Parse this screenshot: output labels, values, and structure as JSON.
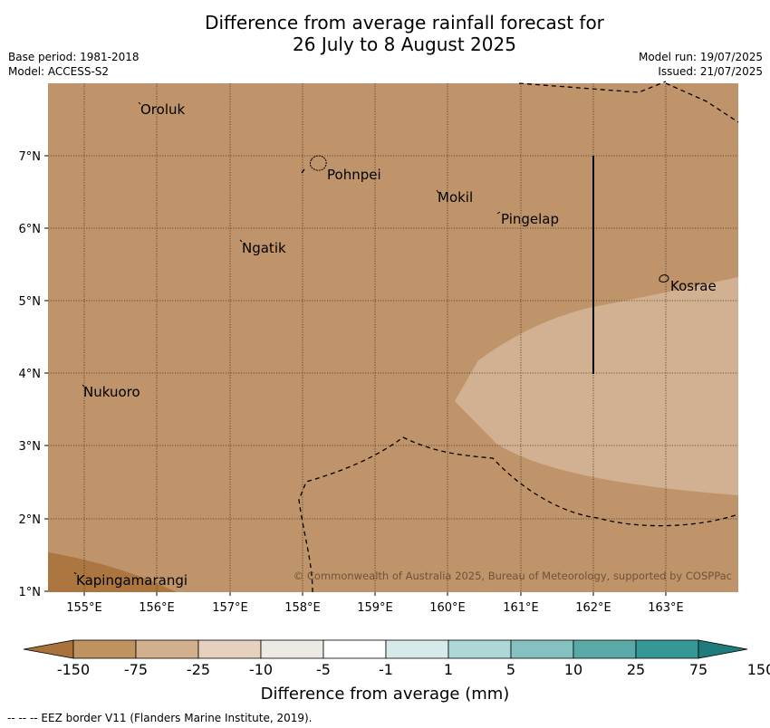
{
  "title_line1": "Difference from average rainfall forecast for",
  "title_line2": "26 July to 8 August 2025",
  "base_period": "Base period: 1981-2018",
  "model": "Model: ACCESS-S2",
  "model_run": "Model run: 19/07/2025",
  "issued": "Issued: 21/07/2025",
  "lon_ticks": [
    "155°E",
    "156°E",
    "157°E",
    "158°E",
    "159°E",
    "160°E",
    "161°E",
    "162°E",
    "163°E"
  ],
  "lat_ticks": [
    "7°N",
    "6°N",
    "5°N",
    "4°N",
    "3°N",
    "2°N",
    "1°N"
  ],
  "places": {
    "oroluk": "Oroluk",
    "pohnpei": "Pohnpei",
    "mokil": "Mokil",
    "pingelap": "Pingelap",
    "ngatik": "Ngatik",
    "kosrae": "Kosrae",
    "nukuoro": "Nukuoro",
    "kapingamarangi": "Kapingamarangi"
  },
  "copyright": "© Commonwealth of Australia 2025, Bureau of Meteorology, supported by COSPPac",
  "colorbar": {
    "labels": [
      "-150",
      "-75",
      "-25",
      "-10",
      "-5",
      "-1",
      "1",
      "5",
      "10",
      "25",
      "75",
      "150"
    ],
    "colors": [
      "#a9713c",
      "#bf935f",
      "#d2b08d",
      "#e5d1bd",
      "#ede9e4",
      "#ffffff",
      "#d6ebe9",
      "#aed7d7",
      "#84c1c0",
      "#59a9a8",
      "#369896",
      "#1f7c7a"
    ],
    "title": "Difference from average (mm)"
  },
  "footer": "--  --  -- EEZ border V11 (Flanders Marine Institute, 2019).",
  "fills": {
    "base": "#bf946a",
    "dark": "#ab763f",
    "light": "#d2b192"
  }
}
